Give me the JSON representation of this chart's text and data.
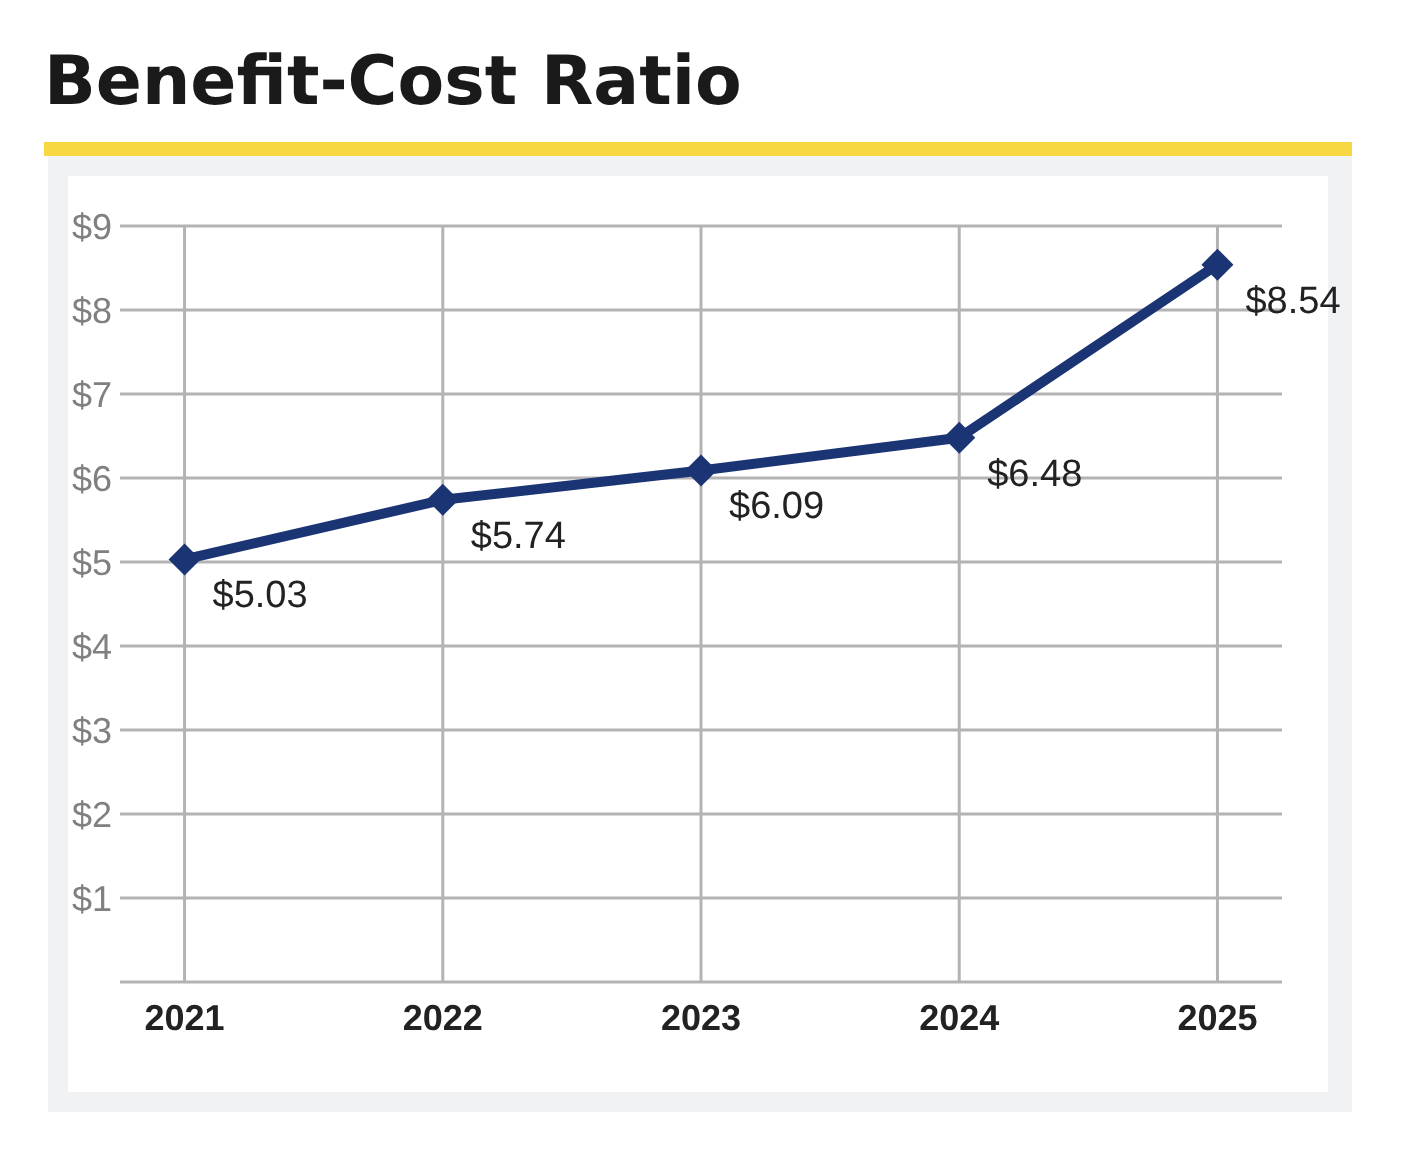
{
  "chart_data": {
    "type": "line",
    "title": "Benefit-Cost Ratio",
    "categories": [
      "2021",
      "2022",
      "2023",
      "2024",
      "2025"
    ],
    "series": [
      {
        "color": "#1b3473",
        "values": [
          5.03,
          5.74,
          6.09,
          6.48,
          8.54
        ],
        "value_labels": [
          "$5.03",
          "$5.74",
          "$6.09",
          "$6.48",
          "$8.54"
        ]
      }
    ],
    "ylim": [
      0,
      9
    ],
    "yticks": [
      {
        "value": 0,
        "label": null
      },
      {
        "value": 1,
        "label": "$1"
      },
      {
        "value": 2,
        "label": "$2"
      },
      {
        "value": 3,
        "label": "$3"
      },
      {
        "value": 4,
        "label": "$4"
      },
      {
        "value": 5,
        "label": "$5"
      },
      {
        "value": 6,
        "label": "$6"
      },
      {
        "value": 7,
        "label": "$7"
      },
      {
        "value": 8,
        "label": "$8"
      },
      {
        "value": 9,
        "label": "$9"
      }
    ],
    "grid": true,
    "marker": "diamond",
    "line_style": "solid"
  }
}
